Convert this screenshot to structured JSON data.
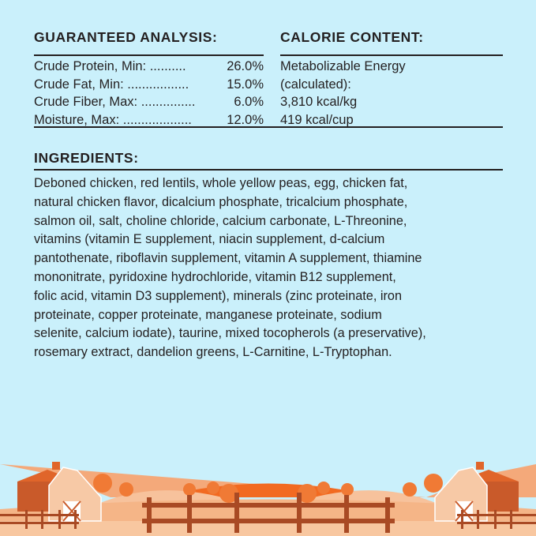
{
  "guaranteed_analysis": {
    "title": "GUARANTEED ANALYSIS:",
    "rows": [
      {
        "label": "Crude Protein, Min: ..........",
        "value": "26.0%"
      },
      {
        "label": "Crude Fat, Min: .................",
        "value": "15.0%"
      },
      {
        "label": "Crude Fiber, Max: ...............",
        "value": "6.0%"
      },
      {
        "label": "Moisture, Max: ...................",
        "value": "12.0%"
      }
    ]
  },
  "calorie_content": {
    "title": "CALORIE CONTENT:",
    "lines": [
      "Metabolizable Energy",
      "(calculated):",
      "3,810 kcal/kg",
      "419 kcal/cup"
    ]
  },
  "ingredients": {
    "title": "INGREDIENTS:",
    "lines": [
      "Deboned chicken, red lentils, whole yellow peas, egg, chicken fat,",
      "natural chicken flavor, dicalcium phosphate, tricalcium phosphate,",
      "salmon oil, salt, choline chloride, calcium carbonate, L-Threonine,",
      "vitamins (vitamin E supplement, niacin supplement, d-calcium",
      "pantothenate, riboflavin supplement, vitamin A supplement, thiamine",
      "mononitrate, pyridoxine hydrochloride, vitamin B12 supplement,",
      "folic acid, vitamin D3 supplement), minerals (zinc proteinate, iron",
      "proteinate, copper proteinate, manganese proteinate, sodium",
      "selenite, calcium iodate), taurine, mixed tocopherols (a preservative),",
      "rosemary extract, dandelion greens, L-Carnitine, L-Tryptophan."
    ]
  },
  "colors": {
    "background": "#caf0fb",
    "text": "#231f20",
    "orange": "#f26a21",
    "light_orange": "#f7b98c",
    "brown": "#a94a24"
  }
}
